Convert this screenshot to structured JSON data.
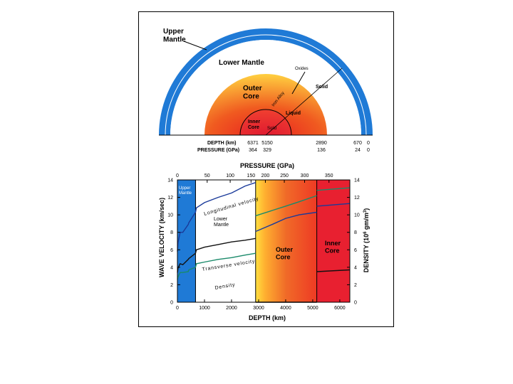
{
  "colors": {
    "mantle_blue": "#1f7ad6",
    "outer_core_red": "#f04020",
    "outer_core_yellow": "#ffd030",
    "inner_core_red": "#e82030",
    "longitudinal_line": "#1a3a9a",
    "transverse_line": "#111111",
    "density_line": "#1a8a6a"
  },
  "cross_section": {
    "upper_mantle": "Upper\nMantle",
    "lower_mantle": "Lower Mantle",
    "oxides": "Oxides",
    "solid_mantle": "Solid",
    "outer_core": "Outer\nCore",
    "iron_alloy": "Iron Alloy",
    "liquid": "Liquid",
    "inner_core": "Inner\nCore",
    "solid_core": "Solid",
    "depth_label": "DEPTH (km)",
    "pressure_label": "PRESSURE (GPa)",
    "depth_values": [
      "6371",
      "5150",
      "2890",
      "670",
      "0"
    ],
    "pressure_values": [
      "364",
      "329",
      "136",
      "24",
      "0"
    ]
  },
  "chart_data": {
    "type": "line",
    "title": "",
    "top_axis_label": "PRESSURE (GPa)",
    "top_ticks": [
      "0",
      "50",
      "100",
      "150",
      "200",
      "250",
      "300",
      "350"
    ],
    "xlabel": "DEPTH (km)",
    "x_ticks": [
      0,
      1000,
      2000,
      3000,
      4000,
      5000,
      6000
    ],
    "xlim": [
      0,
      6371
    ],
    "ylabel_left": "WAVE VELOCITY (km/sec)",
    "ylim_left": [
      0,
      14
    ],
    "y_ticks_left": [
      0,
      2,
      4,
      6,
      8,
      10,
      12,
      14
    ],
    "ylabel_right": "DENSITY (10^6 gm/m^3)",
    "ylim_right": [
      0,
      14
    ],
    "y_ticks_right": [
      0,
      2,
      4,
      6,
      8,
      10,
      12,
      14
    ],
    "regions": [
      {
        "name": "Upper\nMantle",
        "from": 0,
        "to": 670
      },
      {
        "name": "Lower\nMantle",
        "from": 670,
        "to": 2890
      },
      {
        "name": "Outer\nCore",
        "from": 2890,
        "to": 5150
      },
      {
        "name": "Inner\nCore",
        "from": 5150,
        "to": 6371
      }
    ],
    "series": [
      {
        "name": "Longitudinal velocity",
        "x": [
          0,
          20,
          100,
          200,
          400,
          420,
          670,
          700,
          1000,
          1500,
          2000,
          2500,
          2890,
          2891,
          3500,
          4000,
          4500,
          5150,
          5151,
          6371
        ],
        "y": [
          5.8,
          6.8,
          8.0,
          8.0,
          8.9,
          9.1,
          10.3,
          10.8,
          11.4,
          12.0,
          12.5,
          13.3,
          13.7,
          8.1,
          8.9,
          9.6,
          10.0,
          10.3,
          11.0,
          11.3
        ]
      },
      {
        "name": "Transverse velocity",
        "x": [
          0,
          20,
          100,
          200,
          400,
          420,
          670,
          700,
          1000,
          1500,
          2000,
          2500,
          2890,
          2891,
          5150,
          5151,
          6371
        ],
        "y": [
          3.4,
          3.9,
          4.4,
          4.3,
          4.9,
          5.0,
          5.6,
          6.0,
          6.3,
          6.6,
          6.9,
          7.1,
          7.3,
          0,
          0,
          3.5,
          3.7
        ]
      },
      {
        "name": "Density",
        "x": [
          0,
          20,
          100,
          200,
          400,
          420,
          670,
          700,
          1000,
          1500,
          2000,
          2500,
          2890,
          2891,
          3500,
          4000,
          4500,
          5150,
          5151,
          6371
        ],
        "y": [
          2.6,
          2.9,
          3.4,
          3.4,
          3.5,
          3.7,
          4.0,
          4.4,
          4.6,
          4.9,
          5.1,
          5.4,
          5.6,
          9.9,
          10.5,
          11.0,
          11.5,
          12.2,
          12.8,
          13.1
        ]
      }
    ],
    "annotations": {
      "longitudinal": "Longitudinal velocity",
      "transverse": "Transverse velocity",
      "density": "Density"
    }
  }
}
